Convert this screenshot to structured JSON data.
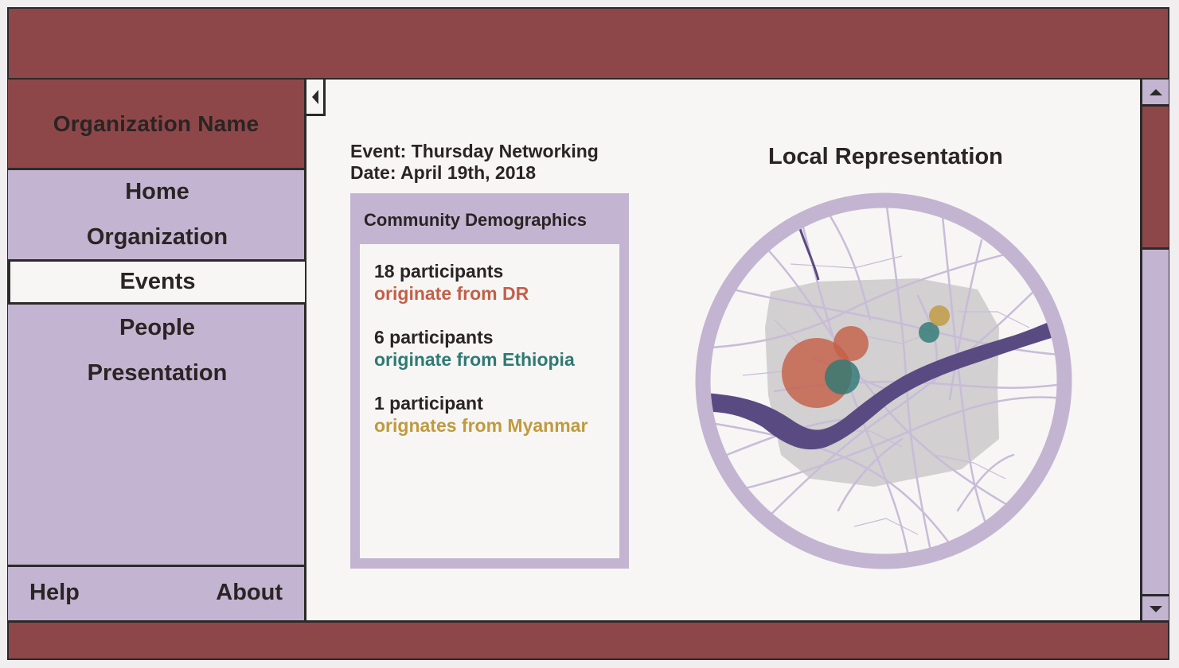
{
  "colors": {
    "brand": "#8d4749",
    "sidebar": "#c3b5d1",
    "panel": "#f7f6f4",
    "dr": "#c45f48",
    "ethiopia": "#2f7a74",
    "myanmar": "#c09a3f"
  },
  "sidebar": {
    "org_name": "Organization Name",
    "items": [
      {
        "label": "Home"
      },
      {
        "label": "Organization"
      },
      {
        "label": "Events"
      },
      {
        "label": "People"
      },
      {
        "label": "Presentation"
      }
    ],
    "footer": {
      "help": "Help",
      "about": "About"
    }
  },
  "event": {
    "title": "Event: Thursday Networking",
    "date": "Date: April 19th, 2018"
  },
  "demographics": {
    "title": "Community Demographics",
    "stats": [
      {
        "count": "18 participants",
        "origin": "originate from DR"
      },
      {
        "count": "6 participants",
        "origin": "originate from Ethiopia"
      },
      {
        "count": "1 participant",
        "origin": "orignates from Myanmar"
      }
    ]
  },
  "map": {
    "title": "Local Representation"
  },
  "icons": {
    "collapse": "collapse-left-icon",
    "scroll_up": "arrow-up-icon",
    "scroll_down": "arrow-down-icon"
  }
}
